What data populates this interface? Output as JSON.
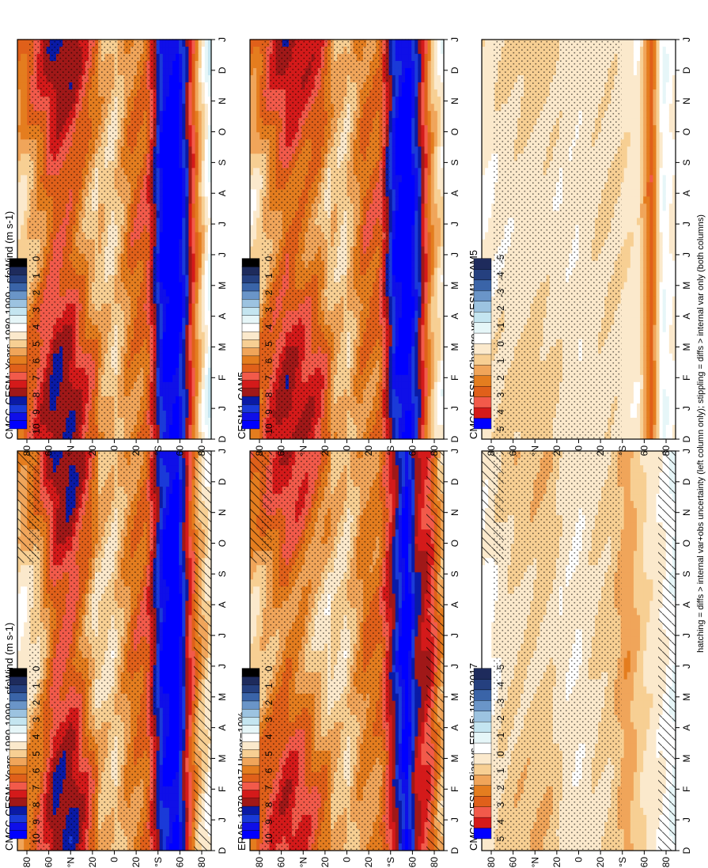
{
  "figure": {
    "footnote": "hatching = diffs > internal var+obs uncertainty (left column only); stippling = diffs > internal var only (both columns)"
  },
  "palettes": {
    "abs": [
      "#000000",
      "#1e2b5c",
      "#25407f",
      "#3a64a8",
      "#6a95c8",
      "#9cc3e0",
      "#c4e5f0",
      "#e6f6f8",
      "#ffffff",
      "#fbe9cc",
      "#f7cf93",
      "#f0a55a",
      "#e47d1f",
      "#e0601a",
      "#f25a4a",
      "#d41a1a",
      "#a01818",
      "#0a1aa6",
      "#1a3ad8",
      "#0f0fe8",
      "#0000ff"
    ],
    "diff": [
      "#1e2b5c",
      "#25407f",
      "#3a64a8",
      "#6a95c8",
      "#9cc3e0",
      "#c4e5f0",
      "#e6f6f8",
      "#ffffff",
      "#fbe9cc",
      "#f7cf93",
      "#f0a55a",
      "#e47d1f",
      "#e0601a",
      "#f25a4a",
      "#d41a1a",
      "#0000ff"
    ]
  },
  "colorbars": {
    "abs": {
      "labels": [
        "10",
        "9",
        "8",
        "7",
        "6",
        "5",
        "4",
        "3",
        "2",
        "1",
        "0"
      ]
    },
    "diff": {
      "labels": [
        "5",
        "4",
        "3",
        "2",
        "1",
        "0",
        "-1",
        "-2",
        "-3",
        "-4",
        "-5"
      ]
    }
  },
  "axes": {
    "months": [
      "D",
      "J",
      "F",
      "M",
      "A",
      "M",
      "J",
      "J",
      "A",
      "S",
      "O",
      "N",
      "D",
      "J"
    ],
    "lat_ticks": [
      "80",
      "60",
      "°N",
      "20",
      "0",
      "20",
      "°S",
      "60",
      "80"
    ]
  },
  "chart_data": [
    {
      "type": "heatmap",
      "panel": "left-top",
      "title": "CMCC-CESM: Years 1980-1999 : sfcWind (m s-1)",
      "x": "month",
      "y": "latitude",
      "ylim": [
        -90,
        90
      ],
      "colorbar": "abs",
      "profile": [
        {
          "lat": 85,
          "v": 5.0
        },
        {
          "lat": 70,
          "v": 5.7
        },
        {
          "lat": 55,
          "v": 7.4
        },
        {
          "lat": 40,
          "v": 7.6
        },
        {
          "lat": 25,
          "v": 6.4
        },
        {
          "lat": 15,
          "v": 5.2
        },
        {
          "lat": 0,
          "v": 4.8
        },
        {
          "lat": -15,
          "v": 6.0
        },
        {
          "lat": -30,
          "v": 6.4
        },
        {
          "lat": -45,
          "v": 9.6
        },
        {
          "lat": -58,
          "v": 10.3
        },
        {
          "lat": -68,
          "v": 7.6
        },
        {
          "lat": -78,
          "v": 5.5
        },
        {
          "lat": -88,
          "v": 4.5
        }
      ]
    },
    {
      "type": "heatmap",
      "panel": "right-top",
      "title": "CMCC-CESM: Years 1980-1999 : sfcWind (m s-1)",
      "x": "month",
      "y": "latitude",
      "ylim": [
        -90,
        90
      ],
      "colorbar": "abs",
      "profile": [
        {
          "lat": 85,
          "v": 5.5
        },
        {
          "lat": 70,
          "v": 6.4
        },
        {
          "lat": 55,
          "v": 7.5
        },
        {
          "lat": 40,
          "v": 7.3
        },
        {
          "lat": 25,
          "v": 6.2
        },
        {
          "lat": 15,
          "v": 5.5
        },
        {
          "lat": 0,
          "v": 4.8
        },
        {
          "lat": -15,
          "v": 6.1
        },
        {
          "lat": -30,
          "v": 6.4
        },
        {
          "lat": -45,
          "v": 9.8
        },
        {
          "lat": -58,
          "v": 10.4
        },
        {
          "lat": -68,
          "v": 8.2
        },
        {
          "lat": -78,
          "v": 5.6
        },
        {
          "lat": -88,
          "v": 3.6
        }
      ]
    },
    {
      "type": "heatmap",
      "panel": "left-middle",
      "title": "ERA5: 1979-2017 Uncer=10%",
      "x": "month",
      "y": "latitude",
      "ylim": [
        -90,
        90
      ],
      "colorbar": "abs",
      "profile": [
        {
          "lat": 85,
          "v": 5.6
        },
        {
          "lat": 70,
          "v": 6.2
        },
        {
          "lat": 55,
          "v": 6.8
        },
        {
          "lat": 40,
          "v": 6.4
        },
        {
          "lat": 25,
          "v": 5.6
        },
        {
          "lat": 15,
          "v": 5.2
        },
        {
          "lat": 0,
          "v": 4.8
        },
        {
          "lat": -15,
          "v": 5.9
        },
        {
          "lat": -30,
          "v": 6.0
        },
        {
          "lat": -45,
          "v": 8.4
        },
        {
          "lat": -55,
          "v": 10.2
        },
        {
          "lat": -65,
          "v": 8.0
        },
        {
          "lat": -78,
          "v": 7.2
        },
        {
          "lat": -88,
          "v": 5.4
        }
      ]
    },
    {
      "type": "heatmap",
      "panel": "right-middle",
      "title": "CESM1-CAM5",
      "x": "month",
      "y": "latitude",
      "ylim": [
        -90,
        90
      ],
      "colorbar": "abs",
      "profile": [
        {
          "lat": 85,
          "v": 5.3
        },
        {
          "lat": 70,
          "v": 6.4
        },
        {
          "lat": 55,
          "v": 7.2
        },
        {
          "lat": 40,
          "v": 6.8
        },
        {
          "lat": 25,
          "v": 6.4
        },
        {
          "lat": 15,
          "v": 5.4
        },
        {
          "lat": 0,
          "v": 4.9
        },
        {
          "lat": -15,
          "v": 6.2
        },
        {
          "lat": -30,
          "v": 6.3
        },
        {
          "lat": -45,
          "v": 9.6
        },
        {
          "lat": -57,
          "v": 10.3
        },
        {
          "lat": -68,
          "v": 8.2
        },
        {
          "lat": -78,
          "v": 5.6
        },
        {
          "lat": -88,
          "v": 4.4
        }
      ]
    },
    {
      "type": "heatmap",
      "panel": "left-bottom",
      "title": "CMCC-CESM: Bias vs ERA5: 1979-2017",
      "x": "month",
      "y": "latitude",
      "ylim": [
        -90,
        90
      ],
      "colorbar": "diff",
      "profile": [
        {
          "lat": 85,
          "v": 0.2
        },
        {
          "lat": 70,
          "v": 0.7
        },
        {
          "lat": 55,
          "v": 0.9
        },
        {
          "lat": 40,
          "v": 1.0
        },
        {
          "lat": 25,
          "v": 0.9
        },
        {
          "lat": 15,
          "v": 0.5
        },
        {
          "lat": 0,
          "v": 0.3
        },
        {
          "lat": -15,
          "v": 0.7
        },
        {
          "lat": -30,
          "v": 0.9
        },
        {
          "lat": -45,
          "v": 1.6
        },
        {
          "lat": -55,
          "v": 1.1
        },
        {
          "lat": -65,
          "v": 0.6
        },
        {
          "lat": -78,
          "v": 0.3
        },
        {
          "lat": -88,
          "v": -0.3
        }
      ]
    },
    {
      "type": "heatmap",
      "panel": "right-bottom",
      "title": "CMCC-CESM: Change vs CESM1-CAM5",
      "x": "month",
      "y": "latitude",
      "ylim": [
        -90,
        90
      ],
      "colorbar": "diff",
      "profile": [
        {
          "lat": 85,
          "v": 0.4
        },
        {
          "lat": 70,
          "v": 0.6
        },
        {
          "lat": 55,
          "v": 0.7
        },
        {
          "lat": 40,
          "v": 0.8
        },
        {
          "lat": 25,
          "v": 0.7
        },
        {
          "lat": 15,
          "v": 0.5
        },
        {
          "lat": 0,
          "v": 0.4
        },
        {
          "lat": -15,
          "v": 0.6
        },
        {
          "lat": -30,
          "v": 0.7
        },
        {
          "lat": -45,
          "v": 0.6
        },
        {
          "lat": -55,
          "v": 0.4
        },
        {
          "lat": -68,
          "v": 2.6
        },
        {
          "lat": -78,
          "v": -0.3
        },
        {
          "lat": -88,
          "v": 0.3
        }
      ]
    }
  ]
}
